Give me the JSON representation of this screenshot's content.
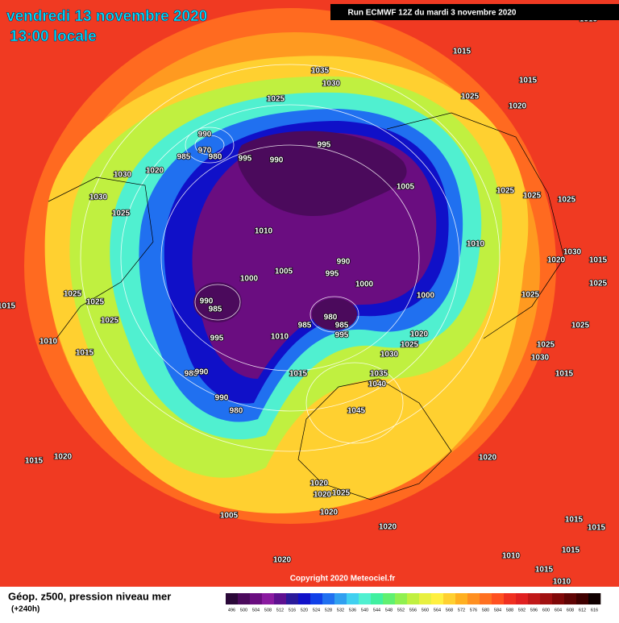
{
  "header": {
    "title": "vendredi 13 novembre 2020",
    "subtitle": "13:00 locale",
    "run_info": "Run ECMWF 12Z du mardi 3 novembre 2020"
  },
  "copyright": "Copyright 2020 Meteociel.fr",
  "footer": {
    "label": "Géop. z500, pression niveau mer",
    "lead_time": "(+240h)"
  },
  "colorbar": {
    "values": [
      496,
      500,
      504,
      508,
      512,
      516,
      520,
      524,
      528,
      532,
      536,
      540,
      544,
      548,
      552,
      556,
      560,
      564,
      568,
      572,
      576,
      580,
      584,
      588,
      592,
      596,
      600,
      604,
      608,
      612,
      616
    ],
    "colors": [
      "#2a0838",
      "#4b0a5c",
      "#6a0d80",
      "#8a1aa0",
      "#5e1090",
      "#2a1a9a",
      "#1010c8",
      "#1040e8",
      "#2070f0",
      "#30a0f0",
      "#40d0f0",
      "#50f0d0",
      "#40f0a0",
      "#60f070",
      "#90f050",
      "#c0f040",
      "#e8f040",
      "#fff040",
      "#ffd030",
      "#ffb020",
      "#ff9020",
      "#ff7020",
      "#ff5020",
      "#f03020",
      "#e02020",
      "#c01818",
      "#a01010",
      "#800808",
      "#600404",
      "#400000",
      "#100000"
    ]
  },
  "isobar_labels": [
    "1035",
    "1030",
    "1025",
    "1015",
    "1015",
    "1025",
    "1020",
    "990",
    "970",
    "980",
    "985",
    "995",
    "990",
    "995",
    "1020",
    "1030",
    "1030",
    "1025",
    "1005",
    "1025",
    "1025",
    "1025",
    "1010",
    "1010",
    "1020",
    "1030",
    "1015",
    "1005",
    "1000",
    "990",
    "995",
    "1000",
    "1025",
    "1025",
    "1015",
    "1000",
    "990",
    "985",
    "1025",
    "1025",
    "1025",
    "980",
    "985",
    "995",
    "985",
    "1020",
    "1025",
    "1025",
    "1025",
    "1010",
    "995",
    "1010",
    "1030",
    "1015",
    "1030",
    "1035",
    "1040",
    "1015",
    "985",
    "990",
    "1015",
    "990",
    "980",
    "1045",
    "1015",
    "1020",
    "1020",
    "1020",
    "1020",
    "1025",
    "1020",
    "1005",
    "1020",
    "1015",
    "1015",
    "1020",
    "1010",
    "1015",
    "1015",
    "1010",
    "1010"
  ]
}
